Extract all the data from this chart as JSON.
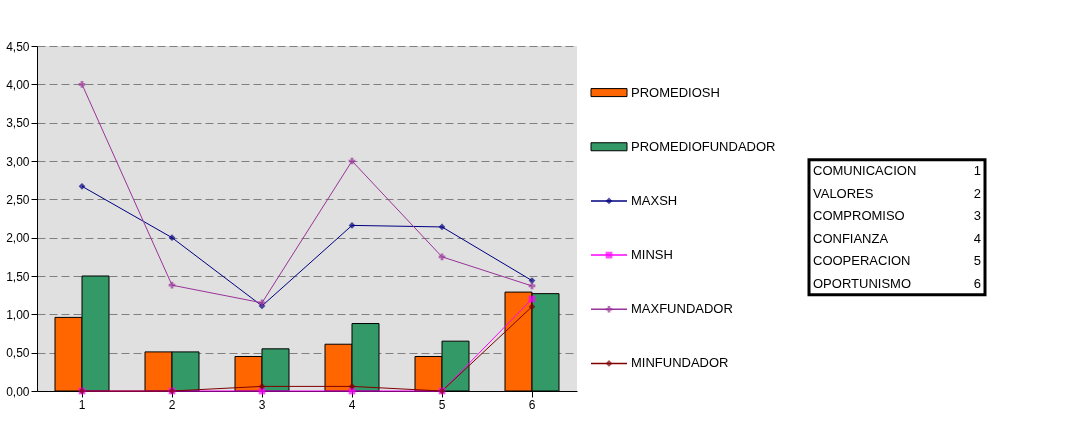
{
  "chart_data": {
    "type": "bar",
    "categories": [
      "1",
      "2",
      "3",
      "4",
      "5",
      "6"
    ],
    "series": [
      {
        "name": "PROMEDIOSH",
        "color": "#ff6600",
        "values": [
          0.96,
          0.51,
          0.45,
          0.61,
          0.45,
          1.29
        ]
      },
      {
        "name": "PROMEDIOFUNDADOR",
        "color": "#339966",
        "values": [
          1.5,
          0.51,
          0.55,
          0.88,
          0.65,
          1.27
        ]
      },
      {
        "name": "MAXSH",
        "type": "line",
        "marker": "diamond",
        "color": "#000080",
        "values": [
          2.67,
          2.0,
          1.11,
          2.16,
          2.14,
          1.44
        ]
      },
      {
        "name": "MINSH",
        "type": "line",
        "marker": "square",
        "color": "#ff00ff",
        "values": [
          0.0,
          0.0,
          0.0,
          0.0,
          0.0,
          1.2
        ]
      },
      {
        "name": "MAXFUNDADOR",
        "type": "line",
        "marker": "cross",
        "color": "#993399",
        "values": [
          4.0,
          1.38,
          1.15,
          3.0,
          1.75,
          1.37
        ]
      },
      {
        "name": "MINFUNDADOR",
        "type": "line",
        "marker": "diamond",
        "color": "#800000",
        "values": [
          0.0,
          0.0,
          0.06,
          0.06,
          0.0,
          1.1
        ]
      }
    ],
    "ylim": [
      0,
      4.5
    ],
    "yticks": [
      {
        "value": 0,
        "label": "0,00"
      },
      {
        "value": 0.5,
        "label": "0,50"
      },
      {
        "value": 1,
        "label": "1,00"
      },
      {
        "value": 1.5,
        "label": "1,50"
      },
      {
        "value": 2,
        "label": "2,00"
      },
      {
        "value": 2.5,
        "label": "2,50"
      },
      {
        "value": 3,
        "label": "3,00"
      },
      {
        "value": 3.5,
        "label": "3,50"
      },
      {
        "value": 4,
        "label": "4,00"
      },
      {
        "value": 4.5,
        "label": "4,50"
      }
    ],
    "grid": "y",
    "legend": "right",
    "line_style": "solid",
    "annotations": [
      "COMUNICACION 1",
      "VALORES 2",
      "COMPROMISO 3",
      "CONFIANZA 4",
      "COOPERACION 5",
      "OPORTUNISMO 6"
    ]
  }
}
